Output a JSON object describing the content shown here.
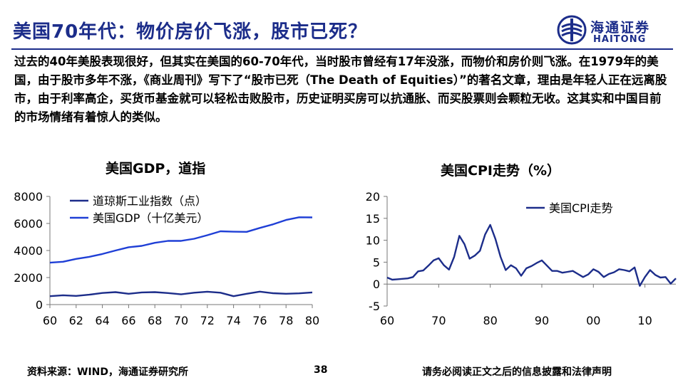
{
  "header": {
    "title": "美国70年代：物价房价飞涨，股市已死？",
    "logo": {
      "icon": "haitong-logo-icon",
      "cn": "海通证券",
      "en": "HAITONG"
    }
  },
  "intro_text": "过去的40年美股表现很好，但其实在美国的60-70年代，当时股市曾经有17年没涨，而物价和房价则飞涨。在1979年的美国，由于股市多年不涨，《商业周刊》写下了“股市已死（The Death of Equities）”的著名文章，理由是年轻人正在远离股市，由于利率高企，买货币基金就可以轻松击败股市，历史证明买房可以抗通胀、而买股票则会颗粒无收。这其实和中国目前的市场情绪有着惊人的类似。",
  "chart_data": [
    {
      "type": "line",
      "title": "美国GDP，道指",
      "ylim": [
        0,
        8000
      ],
      "yticks": [
        0,
        2000,
        4000,
        6000,
        8000
      ],
      "xlim": [
        60,
        80
      ],
      "xticks": [
        "60",
        "62",
        "64",
        "66",
        "68",
        "70",
        "72",
        "74",
        "76",
        "78",
        "80"
      ],
      "x": [
        60,
        61,
        62,
        63,
        64,
        65,
        66,
        67,
        68,
        69,
        70,
        71,
        72,
        73,
        74,
        75,
        76,
        77,
        78,
        79,
        80
      ],
      "series": [
        {
          "name": "道琼斯工业指数（点）",
          "color": "#1c2d8a",
          "values": [
            620,
            690,
            640,
            730,
            860,
            920,
            800,
            900,
            920,
            850,
            760,
            880,
            950,
            880,
            620,
            800,
            960,
            840,
            800,
            830,
            900
          ]
        },
        {
          "name": "美国GDP（十亿美元）",
          "color": "#1f3fd6",
          "values": [
            3100,
            3170,
            3380,
            3530,
            3740,
            4000,
            4240,
            4340,
            4570,
            4710,
            4710,
            4870,
            5130,
            5420,
            5390,
            5380,
            5670,
            5930,
            6260,
            6460,
            6450
          ]
        }
      ],
      "grid": false,
      "legend_position": "top-left"
    },
    {
      "type": "line",
      "title": "美国CPI走势（%）",
      "ylim": [
        -5,
        20
      ],
      "yticks": [
        -5,
        0,
        5,
        10,
        15,
        20
      ],
      "xlim": [
        60,
        116
      ],
      "xticks": [
        "60",
        "70",
        "80",
        "90",
        "00",
        "10"
      ],
      "x": [
        60,
        61,
        62,
        63,
        64,
        65,
        66,
        67,
        68,
        69,
        70,
        71,
        72,
        73,
        74,
        75,
        76,
        77,
        78,
        79,
        80,
        81,
        82,
        83,
        84,
        85,
        86,
        87,
        88,
        89,
        90,
        91,
        92,
        93,
        94,
        95,
        96,
        97,
        98,
        99,
        100,
        101,
        102,
        103,
        104,
        105,
        106,
        107,
        108,
        109,
        110,
        111,
        112,
        113,
        114,
        115,
        116
      ],
      "series": [
        {
          "name": "美国CPI走势",
          "color": "#1c2d8a",
          "values": [
            1.5,
            1.0,
            1.1,
            1.2,
            1.3,
            1.6,
            2.9,
            3.1,
            4.2,
            5.4,
            5.9,
            4.3,
            3.3,
            6.2,
            11.0,
            9.1,
            5.8,
            6.5,
            7.6,
            11.3,
            13.5,
            10.3,
            6.2,
            3.2,
            4.3,
            3.6,
            1.9,
            3.6,
            4.1,
            4.8,
            5.4,
            4.2,
            3.0,
            3.0,
            2.6,
            2.8,
            3.0,
            2.3,
            1.6,
            2.2,
            3.4,
            2.8,
            1.6,
            2.3,
            2.7,
            3.4,
            3.2,
            2.9,
            3.8,
            -0.4,
            1.6,
            3.2,
            2.1,
            1.5,
            1.6,
            0.1,
            1.3
          ]
        }
      ],
      "grid": false,
      "legend_position": "top-right"
    }
  ],
  "footer": {
    "source": "资料来源：WIND，海通证券研究所",
    "page": "38",
    "disclaimer": "请务必阅读正文之后的信息披露和法律声明"
  }
}
